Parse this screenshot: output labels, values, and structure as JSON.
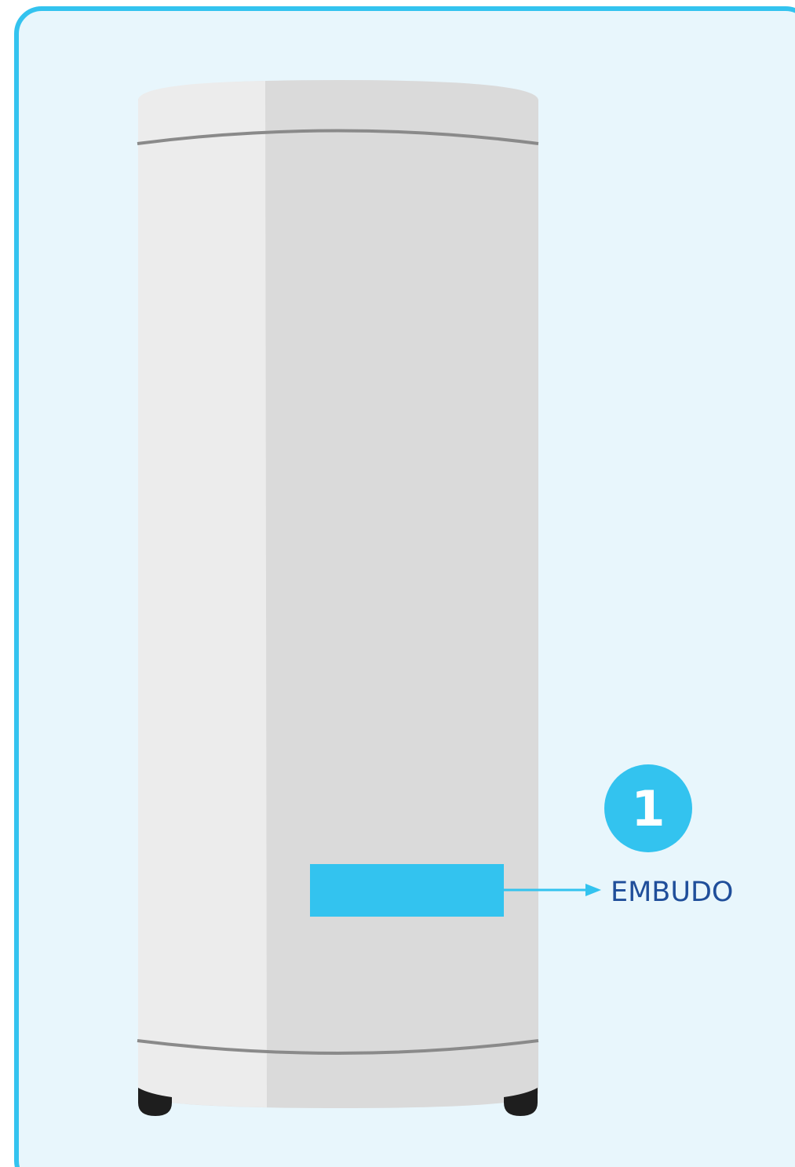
{
  "callout": {
    "number": "1",
    "label": "EMBUDO"
  }
}
